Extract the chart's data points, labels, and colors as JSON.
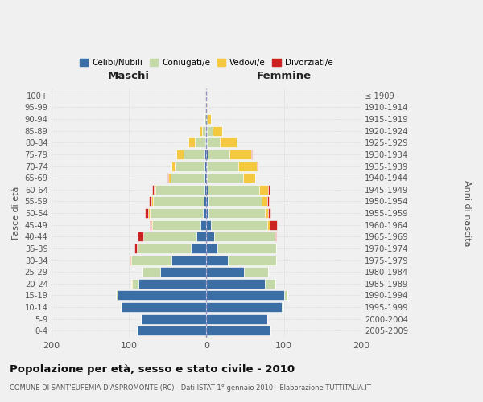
{
  "age_groups": [
    "0-4",
    "5-9",
    "10-14",
    "15-19",
    "20-24",
    "25-29",
    "30-34",
    "35-39",
    "40-44",
    "45-49",
    "50-54",
    "55-59",
    "60-64",
    "65-69",
    "70-74",
    "75-79",
    "80-84",
    "85-89",
    "90-94",
    "95-99",
    "100+"
  ],
  "birth_years": [
    "2005-2009",
    "2000-2004",
    "1995-1999",
    "1990-1994",
    "1985-1989",
    "1980-1984",
    "1975-1979",
    "1970-1974",
    "1965-1969",
    "1960-1964",
    "1955-1959",
    "1950-1954",
    "1945-1949",
    "1940-1944",
    "1935-1939",
    "1930-1934",
    "1925-1929",
    "1920-1924",
    "1915-1919",
    "1910-1914",
    "≤ 1909"
  ],
  "male_celibi": [
    90,
    85,
    110,
    115,
    88,
    60,
    45,
    20,
    13,
    8,
    5,
    4,
    3,
    2,
    2,
    3,
    1,
    1,
    0,
    0,
    0
  ],
  "male_coniugati": [
    0,
    0,
    1,
    2,
    8,
    22,
    52,
    70,
    68,
    62,
    68,
    65,
    63,
    44,
    38,
    26,
    14,
    5,
    2,
    0,
    0
  ],
  "male_vedovi": [
    0,
    0,
    0,
    0,
    1,
    1,
    1,
    0,
    0,
    1,
    2,
    2,
    2,
    3,
    5,
    10,
    8,
    3,
    1,
    0,
    0
  ],
  "male_divorziati": [
    0,
    0,
    0,
    0,
    0,
    0,
    1,
    3,
    8,
    2,
    4,
    3,
    2,
    1,
    0,
    0,
    0,
    0,
    0,
    0,
    0
  ],
  "female_nubili": [
    83,
    78,
    97,
    100,
    75,
    48,
    28,
    14,
    10,
    6,
    3,
    3,
    2,
    1,
    1,
    2,
    1,
    1,
    0,
    0,
    0
  ],
  "female_coniugate": [
    0,
    0,
    2,
    4,
    14,
    32,
    62,
    76,
    78,
    73,
    72,
    68,
    66,
    46,
    40,
    28,
    16,
    7,
    2,
    1,
    0
  ],
  "female_vedove": [
    0,
    0,
    0,
    0,
    0,
    0,
    0,
    0,
    1,
    3,
    5,
    8,
    12,
    16,
    24,
    28,
    22,
    12,
    4,
    1,
    0
  ],
  "female_divorziate": [
    0,
    0,
    0,
    0,
    0,
    0,
    0,
    0,
    1,
    9,
    3,
    2,
    2,
    0,
    1,
    1,
    0,
    0,
    0,
    0,
    0
  ],
  "color_celibi": "#3b6ea5",
  "color_coniugati": "#c5d9a8",
  "color_vedovi": "#f5c842",
  "color_divorziati": "#cc2222",
  "xlim_min": -200,
  "xlim_max": 200,
  "title": "Popolazione per età, sesso e stato civile - 2010",
  "subtitle": "COMUNE DI SANT'EUFEMIA D'ASPROMONTE (RC) - Dati ISTAT 1° gennaio 2010 - Elaborazione TUTTITALIA.IT",
  "ylabel_left": "Fasce di età",
  "ylabel_right": "Anni di nascita",
  "label_maschi": "Maschi",
  "label_femmine": "Femmine",
  "legend_labels": [
    "Celibi/Nubili",
    "Coniugati/e",
    "Vedovi/e",
    "Divorziati/e"
  ],
  "bg_color": "#f0f0f0"
}
